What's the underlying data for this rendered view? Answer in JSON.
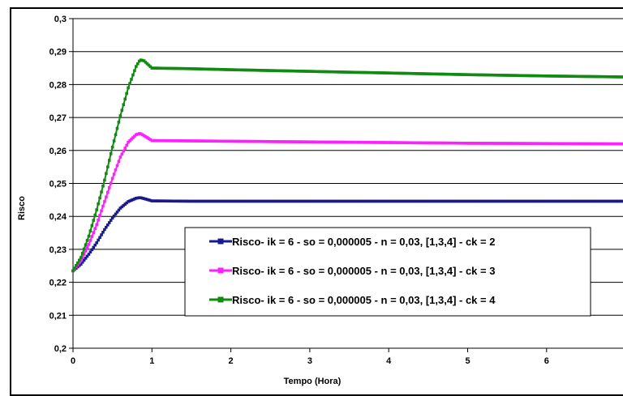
{
  "chart_data": {
    "type": "line",
    "title": "",
    "xlabel": "Tempo (Hora)",
    "ylabel": "Risco",
    "xlim": [
      0,
      7
    ],
    "ylim": [
      0.2,
      0.3
    ],
    "x_ticks": [
      "0",
      "1",
      "2",
      "3",
      "4",
      "5",
      "6"
    ],
    "y_ticks": [
      "0,2",
      "0,21",
      "0,22",
      "0,23",
      "0,24",
      "0,25",
      "0,26",
      "0,27",
      "0,28",
      "0,29",
      "0,3"
    ],
    "grid": "horizontal",
    "legend_position": "bottom-right",
    "series": [
      {
        "name": "Risco- ik = 6 - so = 0,000005 - n = 0,03, [1,3,4] - ck = 2",
        "color": "#1a1a8c",
        "x": [
          0,
          0.1,
          0.2,
          0.3,
          0.4,
          0.5,
          0.6,
          0.7,
          0.8,
          0.85,
          0.9,
          1.0,
          1.5,
          2,
          3,
          4,
          5,
          6,
          7
        ],
        "values": [
          0.2235,
          0.2255,
          0.2285,
          0.232,
          0.236,
          0.2395,
          0.2425,
          0.2445,
          0.2455,
          0.2457,
          0.2454,
          0.2447,
          0.2446,
          0.2446,
          0.2446,
          0.2446,
          0.2446,
          0.2446,
          0.2446
        ]
      },
      {
        "name": "Risco- ik = 6 - so = 0,000005 - n = 0,03, [1,3,4] - ck = 3",
        "color": "#ff1fff",
        "x": [
          0,
          0.1,
          0.2,
          0.3,
          0.4,
          0.5,
          0.6,
          0.7,
          0.8,
          0.85,
          0.9,
          1.0,
          1.5,
          2,
          3,
          4,
          5,
          6,
          7
        ],
        "values": [
          0.2235,
          0.2265,
          0.2315,
          0.2375,
          0.2445,
          0.2515,
          0.258,
          0.2625,
          0.2648,
          0.2652,
          0.2645,
          0.263,
          0.2629,
          0.2628,
          0.2626,
          0.2624,
          0.2622,
          0.2621,
          0.262
        ]
      },
      {
        "name": "Risco- ik = 6 - so = 0,000005 - n = 0,03, [1,3,4] - ck = 4",
        "color": "#108a10",
        "x": [
          0,
          0.1,
          0.2,
          0.3,
          0.4,
          0.5,
          0.6,
          0.7,
          0.8,
          0.85,
          0.9,
          1.0,
          1.5,
          2,
          3,
          4,
          5,
          6,
          7
        ],
        "values": [
          0.2235,
          0.2275,
          0.234,
          0.242,
          0.251,
          0.261,
          0.2705,
          0.279,
          0.2855,
          0.2875,
          0.2872,
          0.285,
          0.2848,
          0.2845,
          0.284,
          0.2835,
          0.283,
          0.2826,
          0.2823
        ]
      }
    ]
  }
}
